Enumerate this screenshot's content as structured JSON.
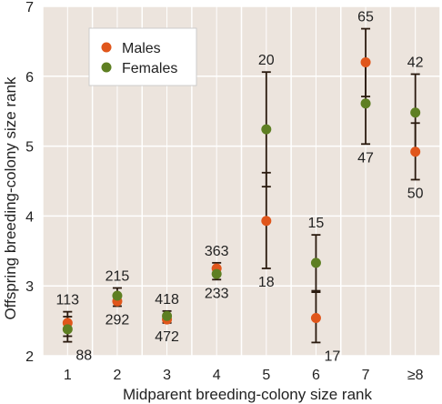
{
  "chart_data": {
    "type": "scatter",
    "title": "",
    "xlabel": "Midparent breeding-colony size rank",
    "ylabel": "Offspring breeding-colony size rank",
    "categories": [
      "1",
      "2",
      "3",
      "4",
      "5",
      "6",
      "7",
      "≥8"
    ],
    "ylim": [
      2,
      7
    ],
    "yticks": [
      "2",
      "3",
      "4",
      "5",
      "6",
      "7"
    ],
    "grid": true,
    "legend_position": "top-left",
    "colors": {
      "background": "#ece4dd",
      "grid": "#ffffff",
      "errorbar": "#2a1a0e",
      "text": "#222222"
    },
    "series": [
      {
        "name": "Males",
        "color": "#e0561b",
        "values": [
          2.47,
          2.78,
          2.52,
          3.25,
          3.93,
          2.54,
          6.2,
          4.92
        ],
        "err_low": [
          2.28,
          2.71,
          2.47,
          3.17,
          3.25,
          2.19,
          5.71,
          4.52
        ],
        "err_high": [
          2.63,
          2.86,
          2.58,
          3.33,
          4.62,
          2.91,
          6.68,
          5.33
        ],
        "counts": [
          "113",
          "292",
          "472",
          "363",
          "18",
          "17",
          "65",
          "50"
        ]
      },
      {
        "name": "Females",
        "color": "#5e7f22",
        "values": [
          2.38,
          2.86,
          2.57,
          3.17,
          5.24,
          3.33,
          5.61,
          5.48
        ],
        "err_low": [
          2.2,
          2.76,
          2.5,
          3.09,
          4.42,
          2.93,
          5.03,
          4.93
        ],
        "err_high": [
          2.56,
          2.97,
          2.64,
          3.25,
          6.06,
          3.73,
          6.2,
          6.03
        ],
        "counts": [
          "88",
          "215",
          "418",
          "233",
          "20",
          "15",
          "47",
          "42"
        ]
      }
    ]
  }
}
